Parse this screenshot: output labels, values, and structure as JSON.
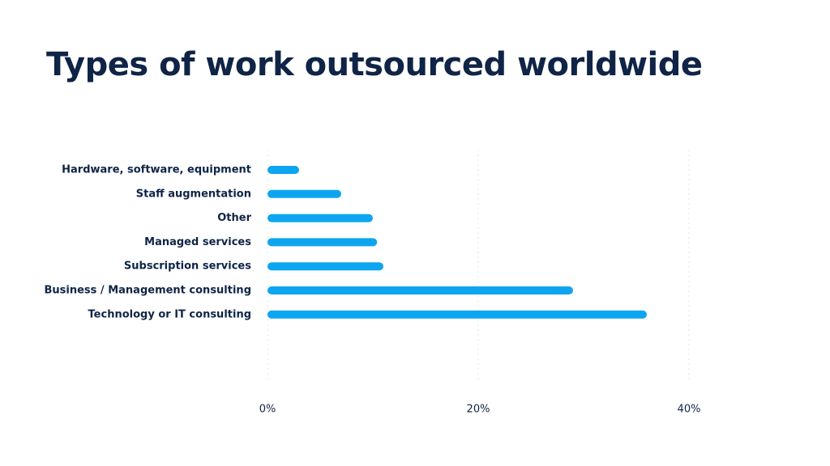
{
  "title": "Types of work outsourced worldwide",
  "colors": {
    "bar": "#0ea5f0",
    "text": "#0f2446",
    "grid": "#e3e6ea"
  },
  "chart_data": {
    "type": "bar",
    "orientation": "horizontal",
    "title": "Types of work outsourced worldwide",
    "categories": [
      "Hardware, software, equipment",
      "Staff augmentation",
      "Other",
      "Managed services",
      "Subscription services",
      "Business / Management consulting",
      "Technology or IT consulting"
    ],
    "values": [
      3,
      7,
      10,
      10.4,
      11,
      29,
      36
    ],
    "xlim": [
      0,
      40
    ],
    "x_ticks": [
      0,
      20,
      40
    ],
    "x_tick_labels": [
      "0%",
      "20%",
      "40%"
    ],
    "grid": true,
    "legend": false
  }
}
